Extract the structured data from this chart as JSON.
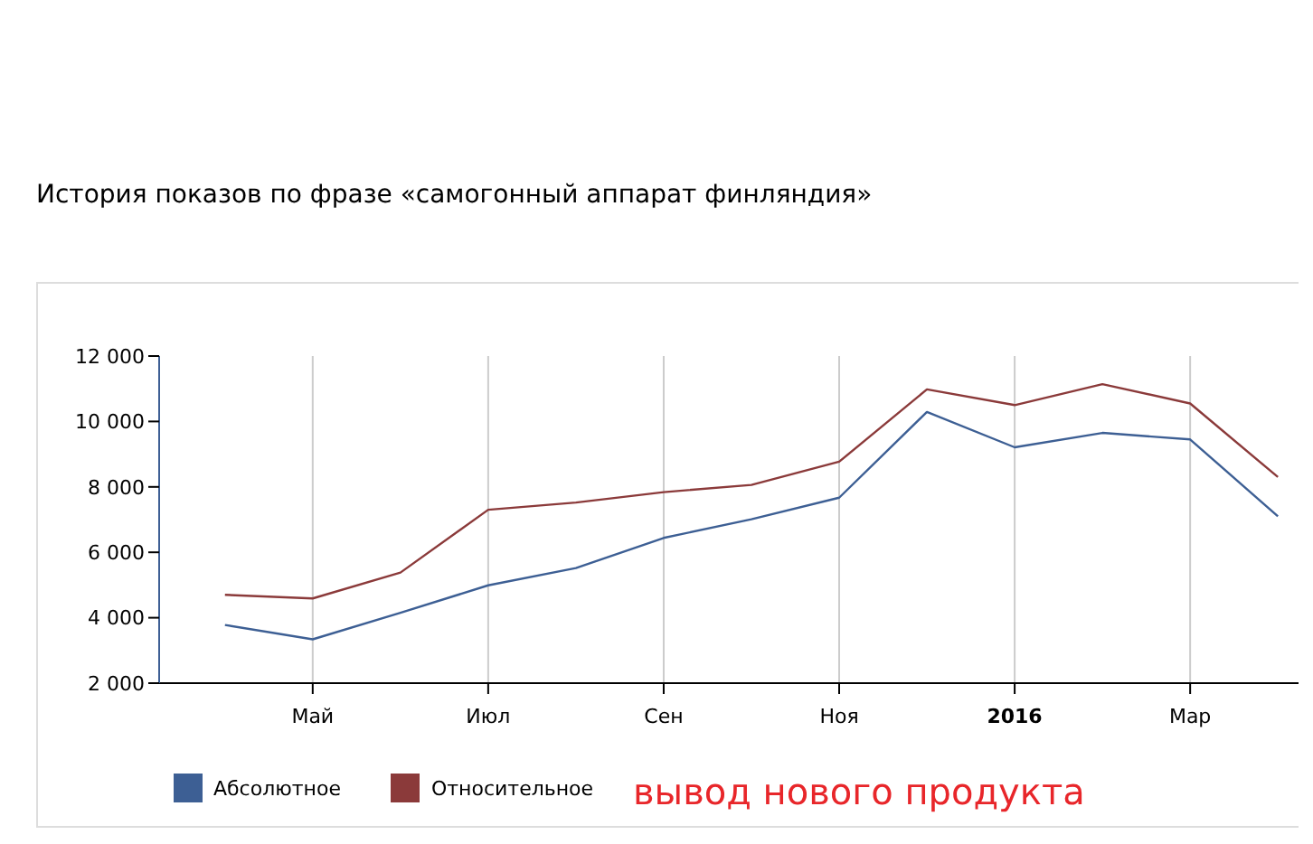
{
  "chart_data": {
    "type": "line",
    "title": "История показов по фразе «самогонный аппарат финляндия»",
    "categories": [
      null,
      "Май",
      null,
      "Июл",
      null,
      "Сен",
      null,
      "Ноя",
      null,
      "2016",
      null,
      "Мар",
      null
    ],
    "series": [
      {
        "name": "Абсолютное",
        "color": "#3d5f94",
        "values": [
          3780,
          3340,
          4150,
          4990,
          5520,
          6440,
          7010,
          7670,
          10290,
          9210,
          9650,
          9450,
          7100
        ]
      },
      {
        "name": "Относительное",
        "color": "#8b3a3a",
        "values": [
          4700,
          4590,
          5380,
          7300,
          7520,
          7840,
          8060,
          8770,
          10980,
          10500,
          11140,
          10550,
          8300
        ]
      }
    ],
    "ylim": [
      2000,
      12000
    ],
    "yticks": [
      {
        "value": 2000,
        "label": "2 000"
      },
      {
        "value": 4000,
        "label": "4 000"
      },
      {
        "value": 6000,
        "label": "6 000"
      },
      {
        "value": 8000,
        "label": "8 000"
      },
      {
        "value": 10000,
        "label": "10 000"
      },
      {
        "value": 12000,
        "label": "12 000"
      }
    ],
    "grid": "x",
    "legend": "bottom",
    "marker": "none",
    "line_style": "solid",
    "annotations": [
      "вывод нового продукта"
    ]
  }
}
